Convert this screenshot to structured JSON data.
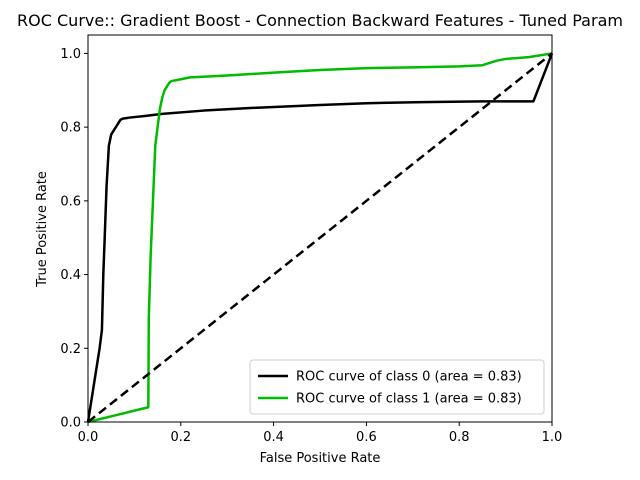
{
  "chart_data": {
    "type": "line",
    "title": "ROC Curve:: Gradient Boost - Connection Backward Features - Tuned Param",
    "xlabel": "False Positive Rate",
    "ylabel": "True Positive Rate",
    "xlim": [
      0.0,
      1.0
    ],
    "ylim": [
      0.0,
      1.05
    ],
    "x_ticks": [
      "0.0",
      "0.2",
      "0.4",
      "0.6",
      "0.8",
      "1.0"
    ],
    "y_ticks": [
      "0.0",
      "0.2",
      "0.4",
      "0.6",
      "0.8",
      "1.0"
    ],
    "grid": false,
    "legend_position": "lower-right",
    "series": [
      {
        "name": "ROC curve of class 0 (area = 0.83)",
        "color": "#000000",
        "style": "solid",
        "x": [
          0.0,
          0.025,
          0.03,
          0.033,
          0.036,
          0.04,
          0.045,
          0.05,
          0.055,
          0.06,
          0.065,
          0.07,
          0.075,
          0.09,
          0.12,
          0.16,
          0.25,
          0.35,
          0.5,
          0.6,
          0.72,
          0.85,
          0.96,
          1.0
        ],
        "y": [
          0.0,
          0.2,
          0.25,
          0.4,
          0.5,
          0.64,
          0.75,
          0.78,
          0.79,
          0.8,
          0.81,
          0.82,
          0.823,
          0.826,
          0.83,
          0.836,
          0.845,
          0.852,
          0.86,
          0.865,
          0.868,
          0.87,
          0.87,
          1.0
        ]
      },
      {
        "name": "ROC curve of class 1 (area = 0.83)",
        "color": "#00bb00",
        "style": "solid",
        "x": [
          0.0,
          0.13,
          0.131,
          0.135,
          0.14,
          0.145,
          0.15,
          0.155,
          0.16,
          0.165,
          0.17,
          0.175,
          0.18,
          0.2,
          0.22,
          0.3,
          0.4,
          0.5,
          0.6,
          0.7,
          0.8,
          0.85,
          0.88,
          0.9,
          0.95,
          1.0
        ],
        "y": [
          0.0,
          0.04,
          0.28,
          0.45,
          0.6,
          0.75,
          0.8,
          0.85,
          0.88,
          0.9,
          0.91,
          0.92,
          0.925,
          0.93,
          0.935,
          0.94,
          0.948,
          0.955,
          0.96,
          0.962,
          0.965,
          0.968,
          0.98,
          0.985,
          0.99,
          1.0
        ]
      },
      {
        "name": "",
        "color": "#000000",
        "style": "dashed",
        "x": [
          0.0,
          1.0
        ],
        "y": [
          0.0,
          1.0
        ]
      }
    ]
  }
}
